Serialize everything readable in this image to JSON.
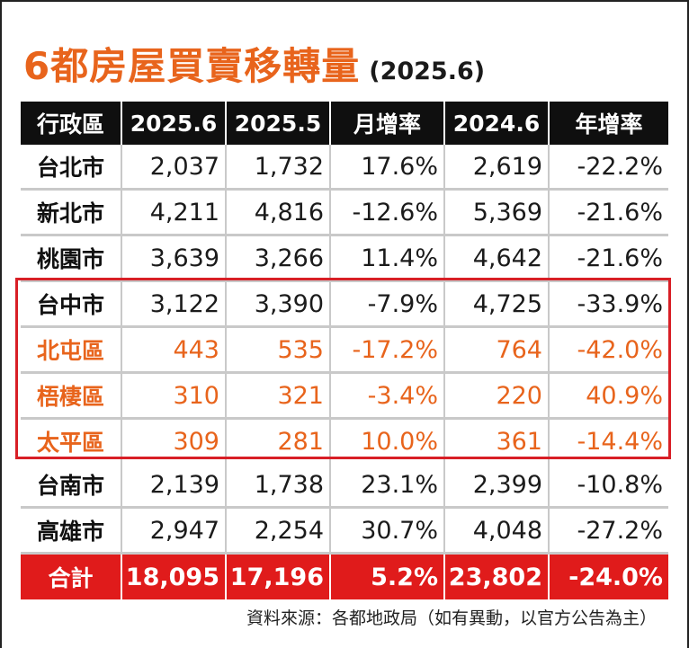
{
  "title": {
    "main": "6都房屋買賣移轉量",
    "sub": "(2025.6)"
  },
  "table": {
    "headers": [
      "行政區",
      "2025.6",
      "2025.5",
      "月增率",
      "2024.6",
      "年增率"
    ],
    "rows": [
      [
        "台北市",
        "2,037",
        "1,732",
        "17.6%",
        "2,619",
        "-22.2%"
      ],
      [
        "新北市",
        "4,211",
        "4,816",
        "-12.6%",
        "5,369",
        "-21.6%"
      ],
      [
        "桃園市",
        "3,639",
        "3,266",
        "11.4%",
        "4,642",
        "-21.6%"
      ],
      [
        "台中市",
        "3,122",
        "3,390",
        "-7.9%",
        "4,725",
        "-33.9%"
      ],
      [
        "北屯區",
        "443",
        "535",
        "-17.2%",
        "764",
        "-42.0%"
      ],
      [
        "梧棲區",
        "310",
        "321",
        "-3.4%",
        "220",
        "40.9%"
      ],
      [
        "太平區",
        "309",
        "281",
        "10.0%",
        "361",
        "-14.4%"
      ],
      [
        "台南市",
        "2,139",
        "1,738",
        "23.1%",
        "2,399",
        "-10.8%"
      ],
      [
        "高雄市",
        "2,947",
        "2,254",
        "30.7%",
        "4,048",
        "-27.2%"
      ]
    ],
    "total": [
      "合計",
      "18,095",
      "17,196",
      "5.2%",
      "23,802",
      "-24.0%"
    ]
  },
  "source": "資料來源：各都地政局（如有異動，以官方公告為主）",
  "colors": {
    "accent_orange": "#e8641c",
    "total_red": "#e01b1b",
    "header_black": "#0f0f0f",
    "highlight_border": "#d81f26"
  }
}
